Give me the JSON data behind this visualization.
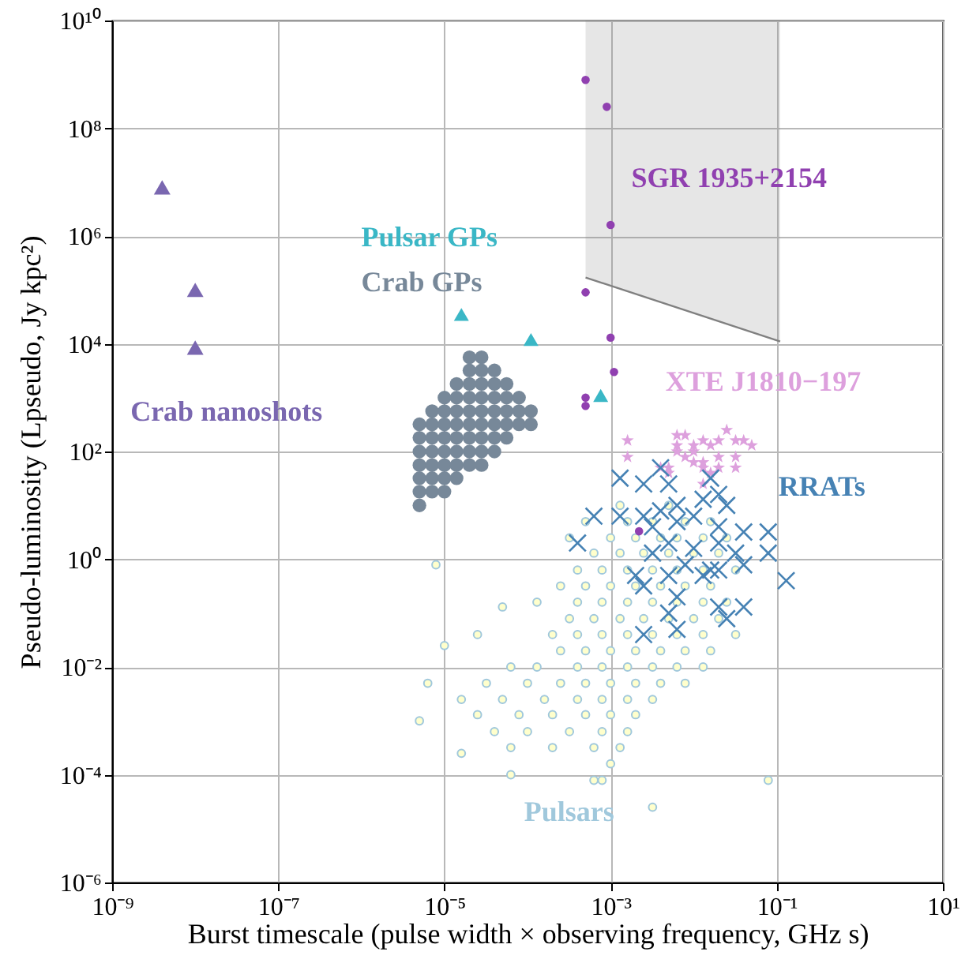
{
  "chart_data": {
    "type": "scatter",
    "log": "xy",
    "grid": true,
    "xlabel": "Burst timescale (pulse width × observing frequency, GHz s)",
    "ylabel": "Pseudo-luminosity (Lpseudo, Jy kpc²)",
    "xlim": [
      1e-09,
      10
    ],
    "ylim": [
      1e-06,
      10000000000.0
    ],
    "xticks": [
      {
        "value": 1e-09,
        "label": "10⁻⁹"
      },
      {
        "value": 1e-07,
        "label": "10⁻⁷"
      },
      {
        "value": 1e-05,
        "label": "10⁻⁵"
      },
      {
        "value": 0.001,
        "label": "10⁻³"
      },
      {
        "value": 0.1,
        "label": "10⁻¹"
      },
      {
        "value": 10,
        "label": "10¹"
      }
    ],
    "yticks": [
      {
        "value": 1e-06,
        "label": "10⁻⁶"
      },
      {
        "value": 0.0001,
        "label": "10⁻⁴"
      },
      {
        "value": 0.01,
        "label": "10⁻²"
      },
      {
        "value": 1,
        "label": "10⁰"
      },
      {
        "value": 100,
        "label": "10²"
      },
      {
        "value": 10000.0,
        "label": "10⁴"
      },
      {
        "value": 1000000.0,
        "label": "10⁶"
      },
      {
        "value": 100000000.0,
        "label": "10⁸"
      },
      {
        "value": 10000000000.0,
        "label": "10¹⁰"
      }
    ],
    "series": [
      {
        "type": "line",
        "color": "#808080",
        "x": [
          0.0005,
          0.11
        ],
        "values": [
          170000.0,
          11000.0
        ],
        "lower": [
          170000.0,
          11000.0
        ],
        "upper": [
          10000000000.0,
          10000000000.0
        ]
      },
      {
        "name": "Pulsars",
        "marker": "circle",
        "color": "#a0c8dc",
        "x": [
          0.0013,
          0.005,
          0.0005,
          0.0016,
          0.0032,
          0.0079,
          0.016,
          0.00032,
          0.001,
          0.002,
          0.004,
          0.0063,
          0.013,
          0.025,
          0.00063,
          0.0013,
          0.0025,
          0.005,
          0.01,
          0.02,
          0.0004,
          0.00079,
          0.0016,
          0.0032,
          0.0063,
          0.013,
          0.032,
          0.00025,
          0.0005,
          0.001,
          0.002,
          0.004,
          0.0079,
          0.016,
          0.00013,
          0.0004,
          0.00079,
          0.0016,
          0.0032,
          0.0063,
          0.013,
          0.025,
          0.00032,
          0.00063,
          0.0013,
          0.0025,
          0.005,
          0.01,
          0.02,
          2.5e-05,
          0.0002,
          0.0004,
          0.00079,
          0.0016,
          0.0032,
          0.0063,
          0.013,
          0.032,
          0.00025,
          0.0005,
          0.001,
          0.002,
          0.004,
          0.0079,
          0.016,
          6.3e-05,
          0.00013,
          0.0004,
          0.00079,
          0.0016,
          0.0032,
          0.0063,
          0.013,
          3.2e-05,
          0.0001,
          0.00025,
          0.0005,
          0.001,
          0.002,
          0.004,
          0.0079,
          1.6e-05,
          5e-05,
          0.00016,
          0.0004,
          0.00079,
          0.0016,
          0.0032,
          2.5e-05,
          7.9e-05,
          0.0002,
          0.0005,
          0.001,
          0.002,
          4e-05,
          0.0001,
          0.00032,
          0.00079,
          0.0016,
          6.3e-05,
          0.0002,
          0.00063,
          0.0013,
          0.001,
          7.9e-06,
          1e-05,
          6.3e-06,
          5e-06,
          5e-05,
          0.00079,
          0.079,
          0.0032,
          1.6e-05,
          6.3e-05,
          0.00063
        ],
        "values": [
          10,
          10,
          5,
          5,
          5,
          5,
          5,
          2.5,
          2.5,
          2.5,
          2.5,
          2.5,
          2.5,
          2.5,
          1.3,
          1.3,
          1.3,
          1.3,
          1.3,
          1.3,
          0.63,
          0.63,
          0.63,
          0.63,
          0.63,
          0.63,
          0.63,
          0.32,
          0.32,
          0.32,
          0.32,
          0.32,
          0.32,
          0.32,
          0.16,
          0.16,
          0.16,
          0.16,
          0.16,
          0.16,
          0.16,
          0.16,
          0.079,
          0.079,
          0.079,
          0.079,
          0.079,
          0.079,
          0.079,
          0.04,
          0.04,
          0.04,
          0.04,
          0.04,
          0.04,
          0.04,
          0.04,
          0.04,
          0.02,
          0.02,
          0.02,
          0.02,
          0.02,
          0.02,
          0.02,
          0.01,
          0.01,
          0.01,
          0.01,
          0.01,
          0.01,
          0.01,
          0.01,
          0.005,
          0.005,
          0.005,
          0.005,
          0.005,
          0.005,
          0.005,
          0.005,
          0.0025,
          0.0025,
          0.0025,
          0.0025,
          0.0025,
          0.0025,
          0.0025,
          0.0013,
          0.0013,
          0.0013,
          0.0013,
          0.0013,
          0.0013,
          0.00063,
          0.00063,
          0.00063,
          0.00063,
          0.00063,
          0.00032,
          0.00032,
          0.00032,
          0.00032,
          0.00016,
          0.79,
          0.025,
          0.005,
          0.001,
          0.13,
          7.9e-05,
          7.9e-05,
          2.5e-05,
          0.00025,
          0.0001,
          7.9e-05
        ]
      },
      {
        "name": "Crab GPs",
        "marker": "circle",
        "color": "#778899",
        "x": [
          5e-06,
          5e-06,
          5e-06,
          5e-06,
          5e-06,
          5e-06,
          5e-06,
          7.1e-06,
          7.1e-06,
          7.1e-06,
          7.1e-06,
          7.1e-06,
          7.1e-06,
          7.1e-06,
          1e-05,
          1e-05,
          1e-05,
          1e-05,
          1e-05,
          1e-05,
          1e-05,
          1e-05,
          1.4e-05,
          1.4e-05,
          1.4e-05,
          1.4e-05,
          1.4e-05,
          1.4e-05,
          1.4e-05,
          1.4e-05,
          2e-05,
          2e-05,
          2e-05,
          2e-05,
          2e-05,
          2e-05,
          2e-05,
          2e-05,
          2e-05,
          2.8e-05,
          2.8e-05,
          2.8e-05,
          2.8e-05,
          2.8e-05,
          2.8e-05,
          2.8e-05,
          2.8e-05,
          2.8e-05,
          4e-05,
          4e-05,
          4e-05,
          4e-05,
          4e-05,
          4e-05,
          4e-05,
          5.6e-05,
          5.6e-05,
          5.6e-05,
          5.6e-05,
          5.6e-05,
          7.9e-05,
          7.9e-05,
          7.9e-05,
          0.00011,
          0.00011
        ],
        "values": [
          10,
          18,
          32,
          56,
          100,
          180,
          320,
          18,
          32,
          56,
          100,
          180,
          320,
          560,
          18,
          32,
          56,
          100,
          180,
          320,
          560,
          1000,
          32,
          56,
          100,
          180,
          320,
          560,
          1000,
          1800,
          56,
          100,
          180,
          320,
          560,
          1000,
          1800,
          3200,
          5600,
          56,
          100,
          180,
          320,
          560,
          1000,
          1800,
          3200,
          5600,
          100,
          180,
          320,
          560,
          1000,
          1800,
          3200,
          180,
          320,
          560,
          1000,
          1800,
          320,
          560,
          1000,
          320,
          560
        ]
      },
      {
        "name": "Crab nanoshots",
        "marker": "triangle",
        "color": "#7a67b0",
        "x": [
          4e-09,
          1e-08,
          1e-08
        ],
        "values": [
          8000000.0,
          100000.0,
          8500.0
        ]
      },
      {
        "name": "Pulsar GPs",
        "marker": "triangle",
        "color": "#3ab7c6",
        "x": [
          1.6e-05,
          0.00011,
          0.00076
        ],
        "values": [
          35000.0,
          12000.0,
          1100.0
        ]
      },
      {
        "name": "SGR 1935+2154",
        "marker": "circle",
        "color": "#9040b0",
        "x": [
          0.0005,
          0.0009,
          0.001,
          0.0005,
          0.001,
          0.0011,
          0.0005,
          0.0005,
          0.0022
        ],
        "values": [
          790000000.0,
          250000000.0,
          1600000.0,
          90000.0,
          13000.0,
          3000.0,
          1000.0,
          700.0,
          3.3
        ]
      },
      {
        "name": "XTE J1810−197",
        "marker": "star",
        "color": "#dda0dd",
        "x": [
          0.0016,
          0.0016,
          0.004,
          0.005,
          0.0063,
          0.0079,
          0.01,
          0.013,
          0.016,
          0.025,
          0.032,
          0.04,
          0.05,
          0.032,
          0.032,
          0.0063,
          0.0079,
          0.01,
          0.013,
          0.02,
          0.013,
          0.016,
          0.02,
          0.01,
          0.013,
          0.0063,
          0.02,
          0.005
        ],
        "values": [
          160,
          79,
          50,
          40,
          200,
          200,
          130,
          160,
          130,
          250,
          160,
          160,
          130,
          79,
          50,
          100,
          79,
          100,
          63,
          79,
          50,
          40,
          50,
          63,
          25,
          130,
          160,
          50
        ]
      },
      {
        "name": "RRATs",
        "marker": "cross",
        "color": "#4682b4",
        "x": [
          0.0013,
          0.0025,
          0.005,
          0.004,
          0.016,
          0.02,
          0.00063,
          0.0013,
          0.0025,
          0.004,
          0.0063,
          0.013,
          0.025,
          0.0004,
          0.0032,
          0.0063,
          0.01,
          0.02,
          0.04,
          0.079,
          0.005,
          0.01,
          0.02,
          0.032,
          0.079,
          0.0032,
          0.0079,
          0.016,
          0.02,
          0.04,
          0.13,
          0.002,
          0.0025,
          0.005,
          0.0063,
          0.005,
          0.02,
          0.04,
          0.025,
          0.0025,
          0.0063,
          0.013
        ],
        "values": [
          32,
          25,
          25,
          50,
          32,
          16,
          6.3,
          6.3,
          6.3,
          7.9,
          10,
          13,
          10,
          2,
          4,
          5,
          6.3,
          4,
          3.2,
          3.2,
          2,
          1.6,
          2,
          1.3,
          1.3,
          1.3,
          0.79,
          0.63,
          0.63,
          0.79,
          0.4,
          0.5,
          0.32,
          0.5,
          0.2,
          0.1,
          0.13,
          0.13,
          0.079,
          0.04,
          0.05,
          0.5
        ]
      }
    ]
  }
}
